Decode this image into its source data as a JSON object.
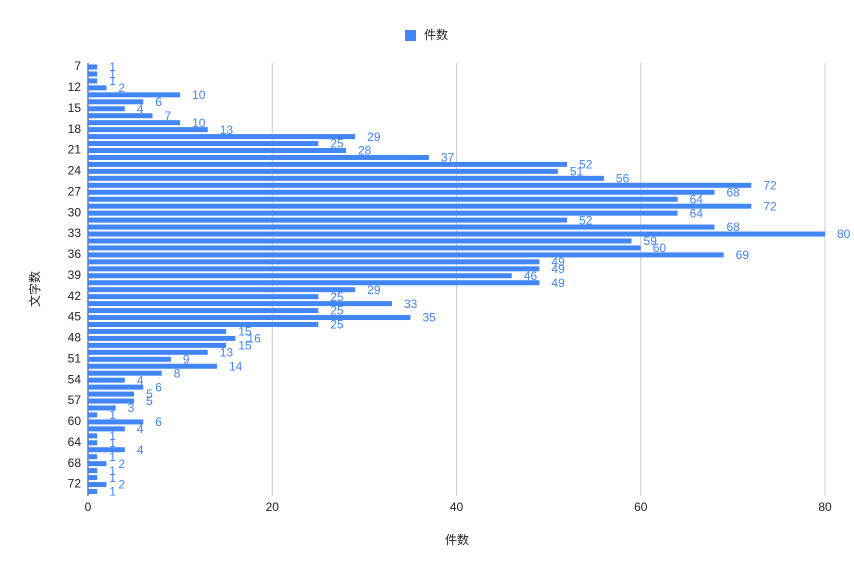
{
  "chart_data": {
    "type": "hbar",
    "legend": "件数",
    "color": "#4285f4",
    "x_axis_label": "件数",
    "y_axis_label": "文字数",
    "categories": [
      "7",
      null,
      null,
      "12",
      null,
      null,
      "15",
      null,
      null,
      "18",
      null,
      null,
      "21",
      null,
      null,
      "24",
      null,
      null,
      "27",
      null,
      null,
      "30",
      null,
      null,
      "33",
      null,
      null,
      "36",
      null,
      null,
      "39",
      null,
      null,
      "42",
      null,
      null,
      "45",
      null,
      null,
      "48",
      null,
      null,
      "51",
      null,
      null,
      "54",
      null,
      null,
      "57",
      null,
      null,
      "60",
      null,
      null,
      "64",
      null,
      null,
      "68",
      null,
      null,
      "72",
      null
    ],
    "values": [
      1,
      1,
      1,
      2,
      10,
      6,
      4,
      7,
      10,
      13,
      29,
      25,
      28,
      37,
      52,
      51,
      56,
      72,
      68,
      64,
      72,
      64,
      52,
      68,
      80,
      59,
      60,
      69,
      49,
      49,
      46,
      49,
      29,
      25,
      33,
      25,
      35,
      25,
      15,
      16,
      15,
      13,
      9,
      14,
      8,
      4,
      6,
      5,
      5,
      3,
      1,
      6,
      4,
      1,
      1,
      4,
      1,
      2,
      1,
      1,
      2,
      1
    ],
    "xlim": [
      0,
      80
    ],
    "xticks": [
      0,
      20,
      40,
      60,
      80
    ],
    "grid": true,
    "legend_position": "top"
  }
}
